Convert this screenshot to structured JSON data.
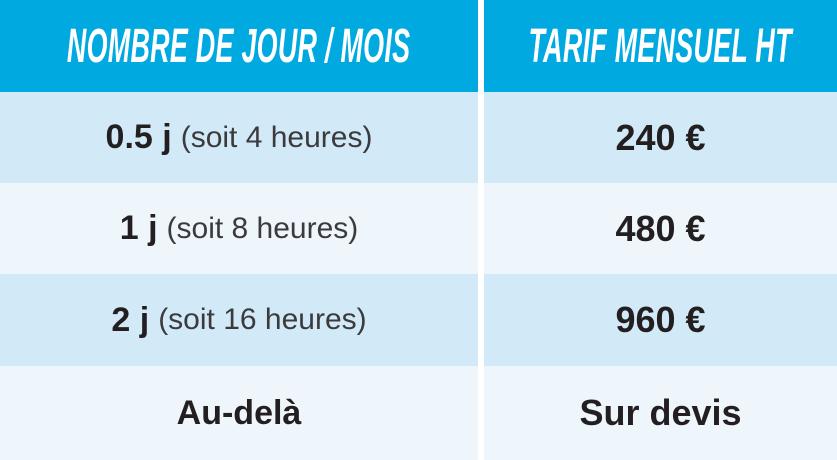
{
  "table": {
    "columns": [
      {
        "header": "NOMBRE DE JOUR / MOIS"
      },
      {
        "header": "TARIF MENSUEL HT"
      }
    ],
    "rows": [
      {
        "days": "0.5 j",
        "detail": "(soit 4 heures)",
        "price": "240 €"
      },
      {
        "days": "1 j",
        "detail": "(soit 8 heures)",
        "price": "480 €"
      },
      {
        "days": "2 j",
        "detail": "(soit 16 heures)",
        "price": "960 €"
      },
      {
        "days": "Au-delà",
        "detail": "",
        "price": "Sur devis"
      }
    ],
    "colors": {
      "header_bg": "#00A9E0",
      "header_text": "#FFFFFF",
      "row_odd_bg": "#D2E9F7",
      "row_even_bg": "#EEF5FB",
      "gutter": "#FFFFFF",
      "text_bold": "#231F20",
      "text_secondary": "#3B3B3D"
    }
  },
  "chart_data": {
    "type": "table",
    "title": "",
    "columns": [
      "NOMBRE DE JOUR / MOIS",
      "TARIF MENSUEL HT"
    ],
    "rows": [
      [
        "0.5 j (soit 4 heures)",
        "240 €"
      ],
      [
        "1 j (soit 8 heures)",
        "480 €"
      ],
      [
        "2 j (soit 16 heures)",
        "960 €"
      ],
      [
        "Au-delà",
        "Sur devis"
      ]
    ],
    "prices_eur_monthly_ht": [
      240,
      480,
      960,
      null
    ],
    "days_per_month": [
      0.5,
      1,
      2,
      null
    ],
    "hours_per_month": [
      4,
      8,
      16,
      null
    ]
  }
}
